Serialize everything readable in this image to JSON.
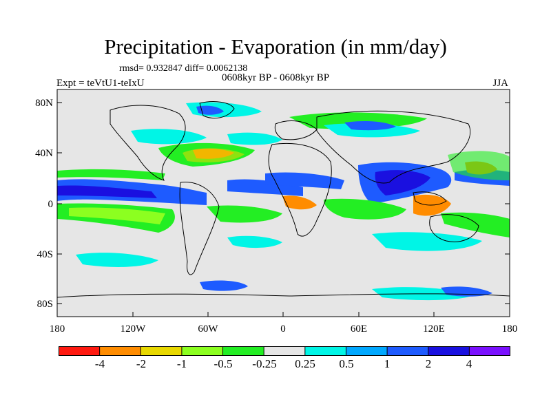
{
  "title": "Precipitation - Evaporation (in mm/day)",
  "stats": "rmsd= 0.932847 diff= 0.0062138",
  "period": "0608kyr BP - 0608kyr BP",
  "experiment": "Expt = teVtU1-teIxU",
  "season": "JJA",
  "axes": {
    "lat_ticks": [
      "80N",
      "40N",
      "0",
      "40S",
      "80S"
    ],
    "lon_ticks": [
      "180",
      "120W",
      "60W",
      "0",
      "60E",
      "120E",
      "180"
    ]
  },
  "colorbar": {
    "labels": [
      "-4",
      "-2",
      "-1",
      "-0.5",
      "-0.25",
      "0.25",
      "0.5",
      "1",
      "2",
      "4"
    ],
    "colors": [
      "#ff1a10",
      "#ff8c00",
      "#e8d800",
      "#8cff20",
      "#23ee23",
      "#e6e6e6",
      "#00f5e6",
      "#00a8ff",
      "#1e5bff",
      "#1a10e0",
      "#7a10ff"
    ]
  },
  "palette": {
    "ocean_neutral": "#e6e6e6",
    "coast": "#000000"
  }
}
